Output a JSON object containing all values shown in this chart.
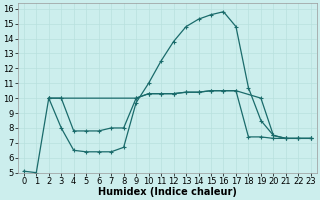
{
  "title": "",
  "xlabel": "Humidex (Indice chaleur)",
  "bg_color": "#cceeed",
  "line_color": "#1a6b6b",
  "grid_color": "#b8e0de",
  "xlim": [
    -0.5,
    23.5
  ],
  "ylim": [
    5,
    16.4
  ],
  "xticks": [
    0,
    1,
    2,
    3,
    4,
    5,
    6,
    7,
    8,
    9,
    10,
    11,
    12,
    13,
    14,
    15,
    16,
    17,
    18,
    19,
    20,
    21,
    22,
    23
  ],
  "yticks": [
    5,
    6,
    7,
    8,
    9,
    10,
    11,
    12,
    13,
    14,
    15,
    16
  ],
  "line1_x": [
    0,
    1,
    2,
    3,
    4,
    5,
    6,
    7,
    8,
    9,
    10,
    11,
    12,
    13,
    14,
    15,
    16,
    17,
    18,
    19,
    20,
    21,
    22,
    23
  ],
  "line1_y": [
    5.1,
    5.0,
    10.0,
    8.0,
    6.5,
    6.4,
    6.4,
    6.4,
    6.7,
    9.7,
    11.0,
    12.5,
    13.8,
    14.8,
    15.3,
    15.6,
    15.8,
    14.8,
    10.7,
    8.5,
    7.5,
    7.3,
    7.3,
    7.3
  ],
  "line2_x": [
    2,
    3,
    4,
    5,
    6,
    7,
    8,
    9,
    10,
    11,
    12,
    13,
    14,
    15,
    16,
    17,
    18,
    19,
    20,
    21,
    22,
    23
  ],
  "line2_y": [
    10.0,
    10.0,
    7.8,
    7.8,
    7.8,
    8.0,
    8.0,
    10.0,
    10.3,
    10.3,
    10.3,
    10.4,
    10.4,
    10.5,
    10.5,
    10.5,
    7.4,
    7.4,
    7.3,
    7.3,
    7.3,
    7.3
  ],
  "line3_x": [
    2,
    3,
    9,
    10,
    11,
    12,
    13,
    14,
    15,
    16,
    17,
    19,
    20,
    21,
    22,
    23
  ],
  "line3_y": [
    10.0,
    10.0,
    10.0,
    10.3,
    10.3,
    10.3,
    10.4,
    10.4,
    10.5,
    10.5,
    10.5,
    10.0,
    7.5,
    7.3,
    7.3,
    7.3
  ],
  "xlabel_fontsize": 7,
  "tick_fontsize": 6
}
